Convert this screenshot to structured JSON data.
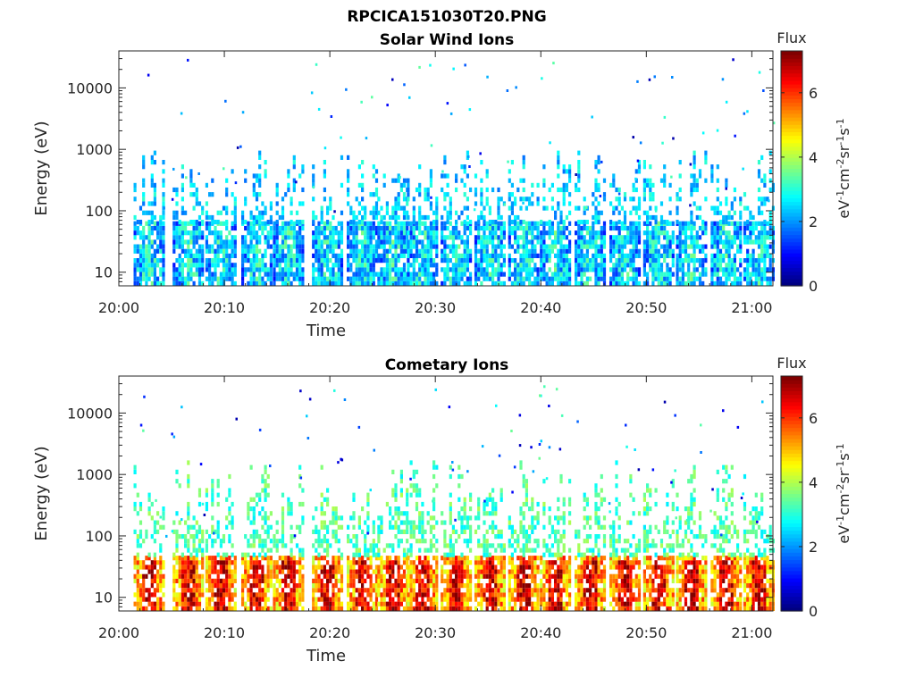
{
  "figure": {
    "title": "RPCICA151030T20.PNG"
  },
  "chart_data": [
    {
      "type": "heatmap",
      "title": "Solar Wind Ions",
      "xlabel": "Time",
      "ylabel": "Energy (eV)",
      "x_tick_labels": [
        "20:00",
        "20:10",
        "20:20",
        "20:30",
        "20:40",
        "20:50",
        "21:00"
      ],
      "x_range_minutes": [
        0,
        62
      ],
      "y_scale": "log",
      "y_tick_values": [
        10,
        100,
        1000,
        10000
      ],
      "y_tick_labels": [
        "10",
        "100",
        "1000",
        "10000"
      ],
      "y_range": [
        6,
        40000
      ],
      "colorbar": {
        "label": "Flux",
        "units": "eV-1cm-2sr-1s-1",
        "range": [
          0,
          7.3
        ],
        "tick_values": [
          0,
          2,
          4,
          6
        ],
        "tick_labels": [
          "0",
          "2",
          "4",
          "6"
        ],
        "colormap": "jet"
      },
      "bursts_minutes": [
        2.8,
        6.5,
        9.6,
        13.0,
        16.0,
        19.7,
        23.0,
        25.9,
        28.7,
        31.9,
        35.1,
        38.3,
        41.3,
        44.6,
        47.9,
        51.1,
        54.2,
        57.5,
        60.6
      ],
      "burst_core_flux": 2.8,
      "burst_core_energy_range": [
        6,
        60
      ]
    },
    {
      "type": "heatmap",
      "title": "Cometary Ions",
      "xlabel": "Time",
      "ylabel": "Energy (eV)",
      "x_tick_labels": [
        "20:00",
        "20:10",
        "20:20",
        "20:30",
        "20:40",
        "20:50",
        "21:00"
      ],
      "x_range_minutes": [
        0,
        62
      ],
      "y_scale": "log",
      "y_tick_values": [
        10,
        100,
        1000,
        10000
      ],
      "y_tick_labels": [
        "10",
        "100",
        "1000",
        "10000"
      ],
      "y_range": [
        6,
        40000
      ],
      "colorbar": {
        "label": "Flux",
        "units": "eV-1cm-2sr-1s-1",
        "range": [
          0,
          7.3
        ],
        "tick_values": [
          0,
          2,
          4,
          6
        ],
        "tick_labels": [
          "0",
          "2",
          "4",
          "6"
        ],
        "colormap": "jet"
      },
      "bursts_minutes": [
        2.8,
        6.5,
        9.6,
        13.0,
        16.0,
        19.7,
        23.0,
        25.9,
        28.7,
        31.9,
        35.1,
        38.3,
        41.3,
        44.6,
        47.9,
        51.1,
        54.2,
        57.5,
        60.6
      ],
      "burst_core_flux": 5.8,
      "burst_core_energy_range": [
        6,
        45
      ]
    }
  ]
}
